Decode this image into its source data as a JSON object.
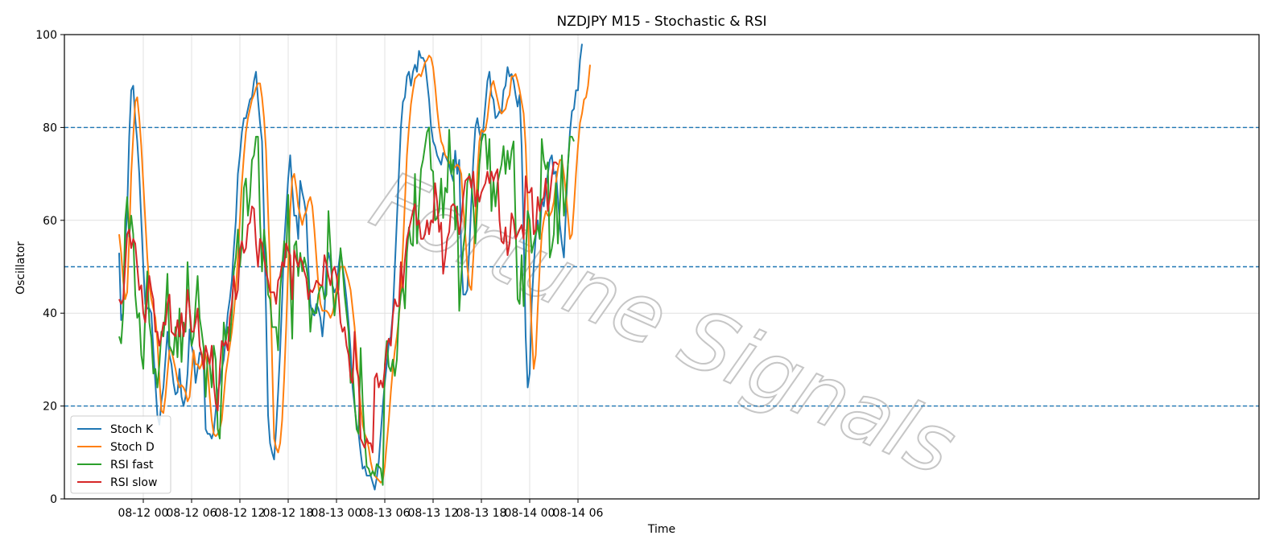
{
  "chart_data": {
    "type": "line",
    "title": "NZDJPY M15 - Stochastic & RSI",
    "xlabel": "Time",
    "ylabel": "Oscillator",
    "ylim": [
      0,
      100
    ],
    "yticks": [
      0,
      20,
      40,
      60,
      80,
      100
    ],
    "xticks": [
      "08-12 00",
      "08-12 06",
      "08-12 12",
      "08-12 18",
      "08-13 00",
      "08-13 06",
      "08-13 12",
      "08-13 18",
      "08-14 00",
      "08-14 06"
    ],
    "x_start": "08-11 21:00",
    "interval_minutes": 15,
    "grid": true,
    "legend_position": "bottom-left",
    "hlines": [
      80,
      50,
      20
    ],
    "watermark": "Fortune Signals",
    "series": [
      {
        "name": "Stoch K",
        "color": "#1f77b4",
        "values": [
          53,
          38.5,
          40,
          55,
          62,
          78,
          88,
          89,
          82,
          77,
          70,
          60,
          50,
          42,
          41,
          41,
          40,
          32,
          25,
          18,
          16,
          21,
          24,
          30,
          36,
          31,
          29,
          25,
          22.5,
          23,
          28,
          22,
          20,
          22,
          27,
          36.5,
          33,
          31,
          25,
          28,
          31.5,
          31,
          29,
          15,
          14,
          14,
          13,
          14.5,
          19,
          23,
          25,
          28,
          30,
          35,
          40,
          43,
          47,
          54,
          60,
          70,
          74,
          79,
          82,
          82,
          84,
          86,
          86.5,
          90,
          92,
          86,
          81,
          77,
          60,
          40,
          18,
          12,
          10,
          8.5,
          15,
          23,
          32,
          43,
          55,
          62,
          69,
          74,
          67,
          61,
          61,
          56,
          68.5,
          66,
          64,
          61,
          50,
          42,
          40,
          39.5,
          42,
          41,
          39,
          35,
          40,
          50,
          53,
          51,
          46,
          44.5,
          45.5,
          50,
          53.5,
          50,
          47,
          43,
          38,
          32,
          24,
          20,
          16,
          14,
          10,
          6.5,
          7,
          5,
          5,
          5,
          3.5,
          2,
          4.5,
          8,
          14,
          20,
          25,
          29,
          33.5,
          35,
          40,
          50,
          60,
          70,
          80,
          85.5,
          86.5,
          91,
          92,
          89,
          92,
          93.5,
          92,
          96.5,
          95,
          95,
          94,
          90,
          86,
          80,
          77,
          76,
          74,
          73,
          72,
          74.5,
          74,
          73,
          72,
          70,
          68.5,
          75,
          70,
          73,
          52,
          44,
          44,
          45,
          54,
          64,
          73,
          80,
          82,
          79,
          77,
          80,
          85,
          90,
          92,
          87,
          86,
          82,
          82.5,
          83.5,
          83,
          88,
          89,
          93,
          91,
          91.5,
          90,
          87,
          84.5,
          87,
          76,
          57,
          35,
          24,
          27,
          42,
          50,
          56.5,
          60,
          56,
          64.5,
          63,
          67,
          70,
          73,
          74,
          70,
          70.5,
          65,
          59,
          55,
          52,
          62,
          72,
          79,
          83.5,
          84,
          88,
          88,
          94.5,
          98
        ]
      },
      {
        "name": "Stoch D",
        "color": "#ff7f0e",
        "values": [
          57,
          53,
          47,
          43,
          44.5,
          56,
          70,
          78,
          85.5,
          86.5,
          82,
          76,
          68,
          60,
          52,
          46,
          43,
          41,
          39,
          34,
          26,
          19,
          18.5,
          22,
          27,
          32,
          32,
          30,
          28,
          25.5,
          24,
          24.5,
          24,
          23,
          21,
          22,
          27,
          32,
          29,
          29,
          28,
          29,
          32,
          31,
          28,
          22,
          17,
          14,
          13.5,
          14,
          15,
          17,
          22,
          27,
          30,
          33,
          36,
          40,
          45,
          52,
          60,
          68,
          74,
          79,
          82,
          84,
          86,
          87,
          88.5,
          89.5,
          89.5,
          86.5,
          82,
          75,
          62,
          50,
          30,
          13,
          11,
          10,
          12,
          17,
          26,
          37,
          50,
          62,
          69,
          70,
          67,
          63,
          61,
          59,
          61,
          62,
          64,
          65,
          63,
          58,
          52,
          46,
          42,
          40.5,
          40.5,
          40.5,
          40,
          39,
          40,
          42,
          45,
          48,
          50,
          50,
          50,
          48.5,
          47,
          45,
          41,
          37,
          31,
          25,
          20,
          16,
          14,
          13,
          11,
          8,
          6,
          5,
          4.5,
          4,
          3.5,
          4,
          7,
          12,
          17,
          23,
          28,
          32,
          35,
          39,
          45,
          54,
          64,
          74,
          80,
          85,
          88,
          90.5,
          91,
          91.5,
          91,
          92.5,
          94,
          94.5,
          95.5,
          95,
          93,
          89,
          84,
          80,
          77,
          76,
          74,
          73.5,
          72.5,
          72,
          71,
          71.5,
          72,
          71.5,
          70,
          63,
          57,
          50,
          46,
          45,
          52,
          60,
          70,
          77,
          79.5,
          79,
          79.5,
          82,
          86,
          89,
          90,
          88,
          86,
          84,
          83,
          83.5,
          84,
          86,
          87,
          91,
          91,
          91.5,
          90,
          88,
          85.5,
          83,
          76,
          64,
          48,
          36,
          28,
          31,
          41,
          50,
          57,
          60,
          62,
          61,
          61,
          62,
          64,
          68,
          71,
          73,
          73,
          70,
          66,
          61,
          56,
          57,
          63,
          70,
          76,
          81,
          83,
          86,
          86.5,
          89,
          93.5
        ]
      },
      {
        "name": "RSI fast",
        "color": "#2ca02c",
        "values": [
          35,
          33.5,
          40,
          60,
          65,
          56.5,
          61,
          57,
          44,
          39,
          40,
          31,
          28,
          40,
          49,
          38,
          34.5,
          27,
          28,
          24,
          29,
          36,
          35,
          40,
          48.5,
          33,
          32,
          31,
          37,
          30.5,
          41,
          29.5,
          38,
          36,
          51,
          41,
          33,
          35,
          42,
          48,
          39,
          36,
          32.5,
          22,
          31,
          29,
          24,
          33,
          30,
          15,
          13,
          25,
          38,
          34,
          37,
          34,
          40,
          49,
          52,
          58,
          50,
          55,
          67,
          69,
          61,
          65,
          73,
          74,
          78,
          78,
          60,
          49,
          58,
          53,
          44,
          43,
          37,
          37,
          37,
          32,
          45,
          50,
          55.5,
          52,
          65.5,
          48,
          34.5,
          54.5,
          55.5,
          48,
          53,
          49,
          52,
          50,
          47,
          36,
          41,
          40,
          40,
          44,
          45.5,
          46,
          43,
          44,
          62,
          54,
          46,
          39.5,
          44,
          45,
          54,
          50,
          44,
          40,
          36,
          25,
          28,
          20.5,
          15,
          14,
          32.5,
          21,
          13,
          7,
          6.5,
          5,
          6,
          5,
          7.5,
          7,
          6.5,
          3,
          29,
          34,
          28.5,
          27.5,
          30,
          26.5,
          30,
          40,
          44,
          46,
          41,
          53,
          58.5,
          55,
          54.5,
          70,
          55,
          63,
          71,
          73,
          76,
          79,
          80,
          71,
          70.5,
          60,
          60.5,
          62,
          69,
          60.5,
          67,
          66,
          79.5,
          70,
          73,
          58,
          63,
          40.5,
          48,
          54,
          58,
          68,
          70,
          68,
          63,
          55,
          63,
          72,
          77,
          78.5,
          78.5,
          71,
          77.5,
          62,
          68.5,
          63,
          68,
          70,
          72,
          76,
          70,
          75,
          71,
          75,
          77,
          59,
          43,
          42,
          52.5,
          41.5,
          52,
          62,
          60,
          53,
          55,
          57,
          59,
          56,
          77.5,
          73,
          71,
          72.5,
          52,
          54,
          57,
          68,
          55,
          63,
          74,
          61,
          65,
          72,
          78,
          78,
          77
        ]
      },
      {
        "name": "RSI slow",
        "color": "#d62728",
        "values": [
          43,
          42,
          43,
          50,
          57,
          58,
          54,
          56,
          55,
          50,
          45,
          46,
          40,
          38,
          44,
          48,
          45,
          43,
          36,
          36,
          33,
          35,
          38,
          37.5,
          42,
          44,
          36,
          35.5,
          35,
          38.5,
          35,
          40,
          35,
          38,
          45,
          41,
          36,
          36,
          38,
          41,
          33,
          31,
          28,
          33,
          31,
          29,
          33,
          25,
          20.5,
          19,
          28,
          34,
          33,
          34,
          32,
          39,
          42,
          48,
          43,
          45,
          53.5,
          55.5,
          53,
          54,
          59,
          59.5,
          63,
          62.5,
          55,
          50,
          56,
          55,
          52,
          49,
          47,
          44.5,
          44.5,
          44.5,
          42,
          47,
          48,
          51,
          50,
          55,
          53.5,
          52.5,
          43,
          53.5,
          51.5,
          50,
          52,
          51,
          49,
          47.5,
          43,
          45,
          44.5,
          45.5,
          47,
          46.5,
          46,
          46,
          52.5,
          50.5,
          48,
          46,
          49,
          50,
          48,
          44,
          38,
          36,
          37,
          33,
          31,
          26,
          25,
          36,
          28,
          26,
          13,
          12,
          11,
          13,
          12,
          12,
          10,
          26,
          27,
          24,
          25.5,
          24,
          28,
          33,
          34.5,
          33,
          39.5,
          43,
          41.5,
          41.5,
          51,
          45.5,
          51.5,
          56,
          58,
          60,
          62,
          63.5,
          59,
          60,
          56,
          56,
          57,
          60,
          57,
          60,
          59.5,
          68,
          64,
          57.5,
          59.5,
          48.5,
          52,
          56,
          57.5,
          63,
          63.5,
          63,
          61,
          57,
          60,
          65,
          68.5,
          69,
          69.5,
          67,
          70.5,
          63,
          66.5,
          64,
          66,
          67,
          68,
          70.5,
          68,
          70.5,
          68.5,
          70,
          71,
          60,
          55.5,
          55,
          58.5,
          52.5,
          55,
          61.5,
          60,
          56,
          57,
          58,
          59,
          56,
          69.5,
          66,
          66,
          67,
          57,
          58,
          65,
          62,
          64,
          65,
          69,
          62,
          65,
          69.5,
          72.5,
          72.5,
          72
        ]
      }
    ]
  }
}
